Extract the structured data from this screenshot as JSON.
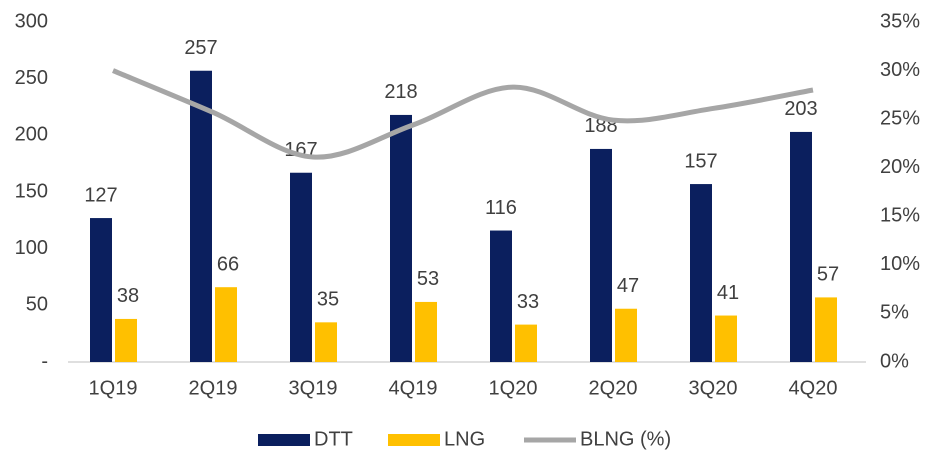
{
  "chart_data": {
    "type": "bar",
    "categories": [
      "1Q19",
      "2Q19",
      "3Q19",
      "4Q19",
      "1Q20",
      "2Q20",
      "3Q20",
      "4Q20"
    ],
    "series": [
      {
        "name": "DTT",
        "color": "#0b1f5e",
        "values": [
          127,
          257,
          167,
          218,
          116,
          188,
          157,
          203
        ]
      },
      {
        "name": "LNG",
        "color": "#ffc000",
        "values": [
          38,
          66,
          35,
          53,
          33,
          47,
          41,
          57
        ]
      },
      {
        "name": "BLNG (%)",
        "color": "#a6a6a6",
        "type": "line",
        "axis": "y2",
        "values": [
          30,
          25.7,
          21.1,
          24.4,
          28.3,
          24.9,
          26.1,
          28
        ]
      }
    ],
    "ylim": [
      0,
      300
    ],
    "yticks": [
      {
        "value": 0,
        "label": "-"
      },
      50,
      100,
      150,
      200,
      250,
      300
    ],
    "y2lim": [
      0,
      35
    ],
    "y2ticks": [
      {
        "value": 0,
        "label": "0%"
      },
      {
        "value": 5,
        "label": "5%"
      },
      {
        "value": 10,
        "label": "10%"
      },
      {
        "value": 15,
        "label": "15%"
      },
      {
        "value": 20,
        "label": "20%"
      },
      {
        "value": 25,
        "label": "25%"
      },
      {
        "value": 30,
        "label": "30%"
      },
      {
        "value": 35,
        "label": "35%"
      }
    ],
    "grid": false,
    "legend": "bottom"
  }
}
